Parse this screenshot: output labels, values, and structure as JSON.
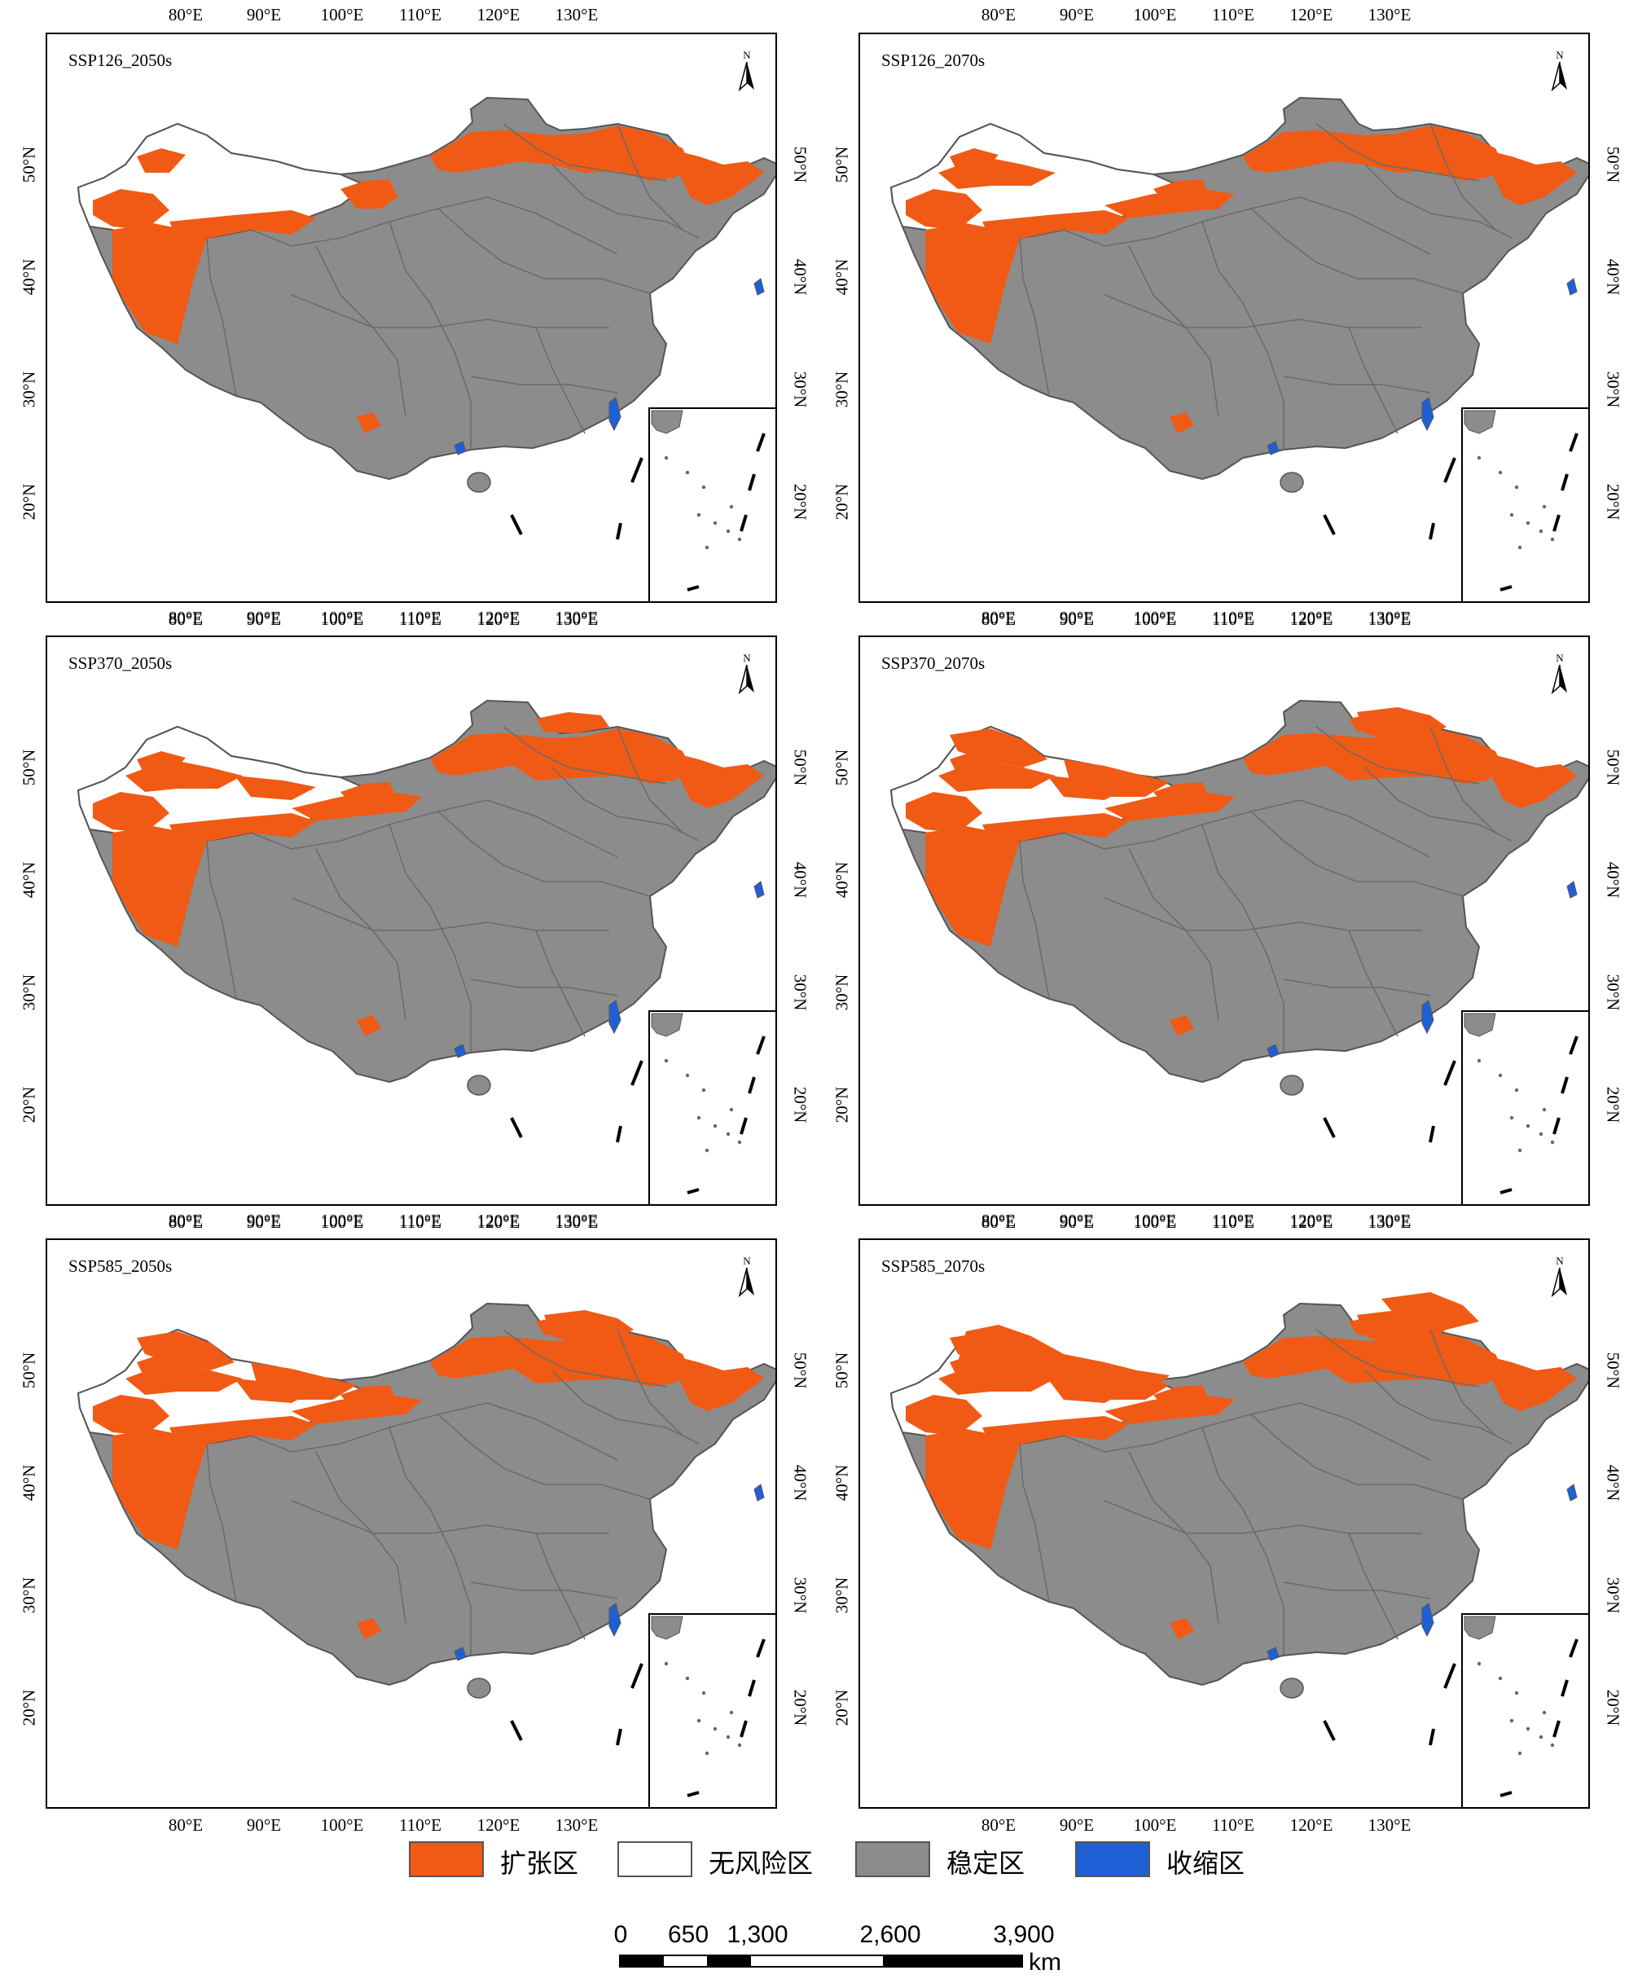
{
  "colors": {
    "expansion": "#f05a14",
    "no_risk": "#ffffff",
    "stable": "#8c8c8c",
    "contraction": "#1f5fd6",
    "boundary": "#555555"
  },
  "axis": {
    "lon_labels": [
      "80°E",
      "90°E",
      "100°E",
      "110°E",
      "120°E",
      "130°E"
    ],
    "lat_labels": [
      "50°N",
      "40°N",
      "30°N",
      "20°N"
    ]
  },
  "north_label": "N",
  "panels": [
    {
      "title": "SSP126_2050s",
      "expansion_level": 1
    },
    {
      "title": "SSP126_2070s",
      "expansion_level": 2
    },
    {
      "title": "SSP370_2050s",
      "expansion_level": 3
    },
    {
      "title": "SSP370_2070s",
      "expansion_level": 4
    },
    {
      "title": "SSP585_2050s",
      "expansion_level": 4
    },
    {
      "title": "SSP585_2070s",
      "expansion_level": 5
    }
  ],
  "legend": [
    {
      "label": "扩张区",
      "color_key": "expansion"
    },
    {
      "label": "无风险区",
      "color_key": "no_risk"
    },
    {
      "label": "稳定区",
      "color_key": "stable"
    },
    {
      "label": "收缩区",
      "color_key": "contraction"
    }
  ],
  "scalebar": {
    "ticks": [
      "0",
      "650",
      "1,300",
      "2,600",
      "3,900"
    ],
    "unit": "km"
  }
}
